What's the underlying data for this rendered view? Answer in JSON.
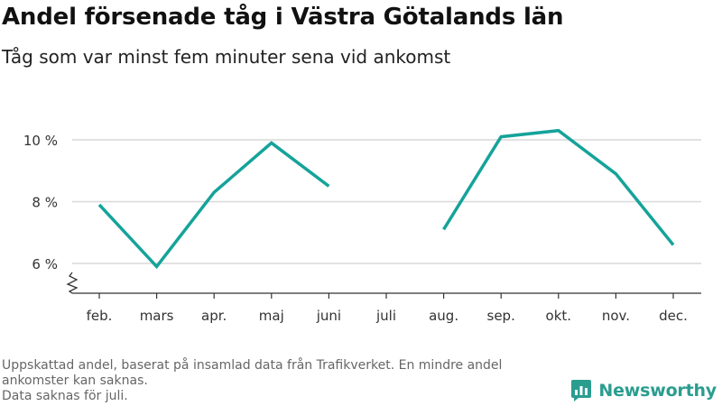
{
  "header": {
    "title": "Andel försenade tåg i Västra Götalands län",
    "subtitle": "Tåg som var minst fem minuter sena vid ankomst"
  },
  "footnote": {
    "line1": "Uppskattad andel, baserat på insamlad data från Trafikverket. En mindre andel",
    "line2": "ankomster kan saknas.",
    "line3": "Data saknas för juli."
  },
  "brand": {
    "name": "Newsworthy"
  },
  "colors": {
    "line": "#15a39a",
    "grid": "#d9d9d9",
    "axis": "#333333",
    "brand": "#2a9d8f"
  },
  "chart_data": {
    "type": "line",
    "categories": [
      "feb.",
      "mars",
      "apr.",
      "maj",
      "juni",
      "juli",
      "aug.",
      "sep.",
      "okt.",
      "nov.",
      "dec."
    ],
    "series": [
      {
        "values": [
          7.9,
          5.9,
          8.3,
          9.9,
          8.5,
          null,
          7.1,
          10.1,
          10.3,
          8.9,
          6.6
        ]
      }
    ],
    "yticks": [
      6,
      8,
      10
    ],
    "ytick_labels": [
      "6 %",
      "8 %",
      "10 %"
    ],
    "ylim": [
      5,
      11
    ],
    "y_axis_break": true,
    "grid": true,
    "xlabel": "",
    "ylabel": ""
  }
}
